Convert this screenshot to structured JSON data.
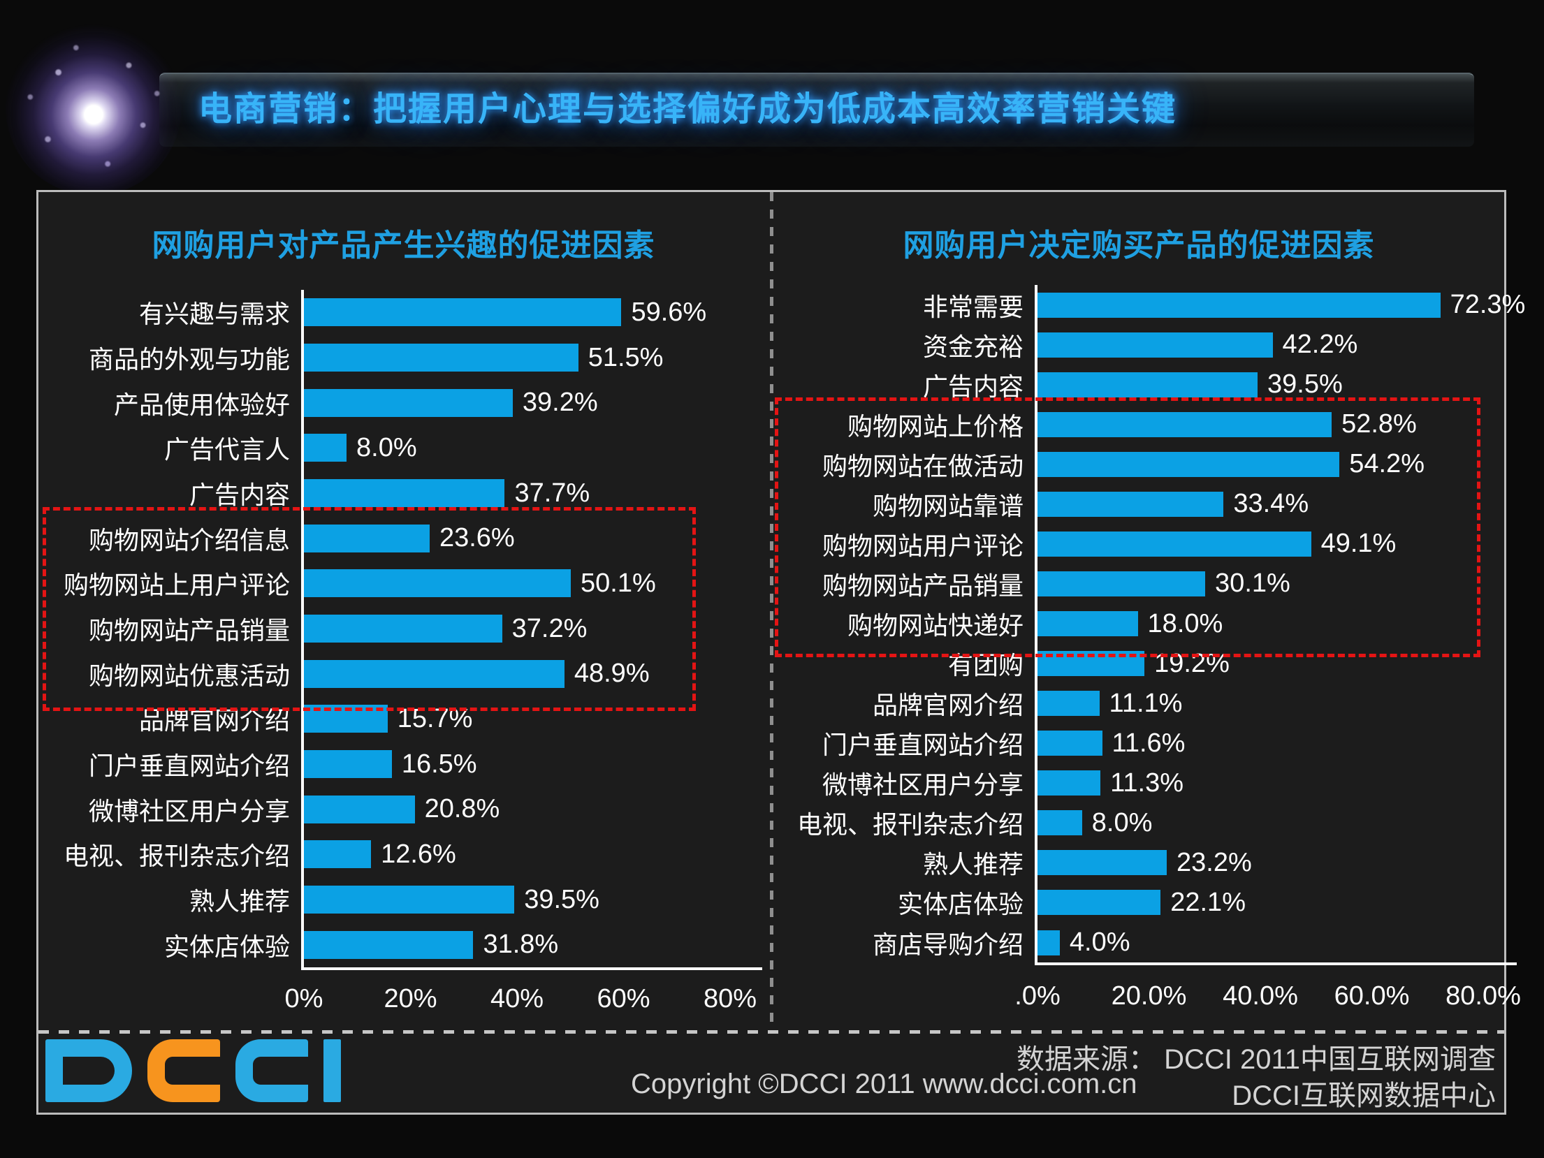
{
  "header": {
    "title": "电商营销：把握用户心理与选择偏好成为低成本高效率营销关键"
  },
  "chart_data": [
    {
      "type": "bar",
      "orientation": "horizontal",
      "title": "网购用户对产品产生兴趣的促进因素",
      "categories": [
        "有兴趣与需求",
        "商品的外观与功能",
        "产品使用体验好",
        "广告代言人",
        "广告内容",
        "购物网站介绍信息",
        "购物网站上用户评论",
        "购物网站产品销量",
        "购物网站优惠活动",
        "品牌官网介绍",
        "门户垂直网站介绍",
        "微博社区用户分享",
        "电视、报刊杂志介绍",
        "熟人推荐",
        "实体店体验"
      ],
      "values": [
        59.6,
        51.5,
        39.2,
        8.0,
        37.7,
        23.6,
        50.1,
        37.2,
        48.9,
        15.7,
        16.5,
        20.8,
        12.6,
        39.5,
        31.8
      ],
      "value_labels": [
        "59.6%",
        "51.5%",
        "39.2%",
        "8.0%",
        "37.7%",
        "23.6%",
        "50.1%",
        "37.2%",
        "48.9%",
        "15.7%",
        "16.5%",
        "20.8%",
        "12.6%",
        "39.5%",
        "31.8%"
      ],
      "xlim": [
        0,
        80
      ],
      "x_tick_labels": [
        "0%",
        "20%",
        "40%",
        "60%",
        "80%"
      ],
      "x_tick_values": [
        0,
        20,
        40,
        60,
        80
      ],
      "grid": false,
      "legend": null,
      "bar_color": "#0ba1e4",
      "highlight": {
        "style": "red-dashed-box",
        "rows_from": "购物网站介绍信息",
        "rows_to": "购物网站优惠活动"
      }
    },
    {
      "type": "bar",
      "orientation": "horizontal",
      "title": "网购用户决定购买产品的促进因素",
      "categories": [
        "非常需要",
        "资金充裕",
        "广告内容",
        "购物网站上价格",
        "购物网站在做活动",
        "购物网站靠谱",
        "购物网站用户评论",
        "购物网站产品销量",
        "购物网站快递好",
        "有团购",
        "品牌官网介绍",
        "门户垂直网站介绍",
        "微博社区用户分享",
        "电视、报刊杂志介绍",
        "熟人推荐",
        "实体店体验",
        "商店导购介绍"
      ],
      "values": [
        72.3,
        42.2,
        39.5,
        52.8,
        54.2,
        33.4,
        49.1,
        30.1,
        18.0,
        19.2,
        11.1,
        11.6,
        11.3,
        8.0,
        23.2,
        22.1,
        4.0
      ],
      "value_labels": [
        "72.3%",
        "42.2%",
        "39.5%",
        "52.8%",
        "54.2%",
        "33.4%",
        "49.1%",
        "30.1%",
        "18.0%",
        "19.2%",
        "11.1%",
        "11.6%",
        "11.3%",
        "8.0%",
        "23.2%",
        "22.1%",
        "4.0%"
      ],
      "xlim": [
        0,
        80
      ],
      "x_tick_labels": [
        ".0%",
        "20.0%",
        "40.0%",
        "60.0%",
        "80.0%"
      ],
      "x_tick_values": [
        0,
        20,
        40,
        60,
        80
      ],
      "grid": false,
      "legend": null,
      "bar_color": "#0ba1e4",
      "highlight": {
        "style": "red-dashed-box",
        "rows_from": "购物网站上价格",
        "rows_to": "购物网站快递好"
      }
    }
  ],
  "footer": {
    "logo_text": "DCCI",
    "logo_letter_colors": [
      "#2aaae2",
      "#f7941e",
      "#2aaae2",
      "#2aaae2"
    ],
    "copyright": "Copyright ©DCCI 2011 www.dcci.com.cn",
    "source_label": "数据来源： DCCI 2011中国互联网调查",
    "source_org": "DCCI互联网数据中心"
  },
  "colors": {
    "bar": "#0ba1e4",
    "chart_title": "#1fa0e2",
    "main_title": "#38b4f8",
    "highlight_border": "#e41414",
    "box_border": "#bcbcbc",
    "text": "#ffffff",
    "footer_text": "#d4d4d4",
    "background": "#1c1c1c"
  }
}
